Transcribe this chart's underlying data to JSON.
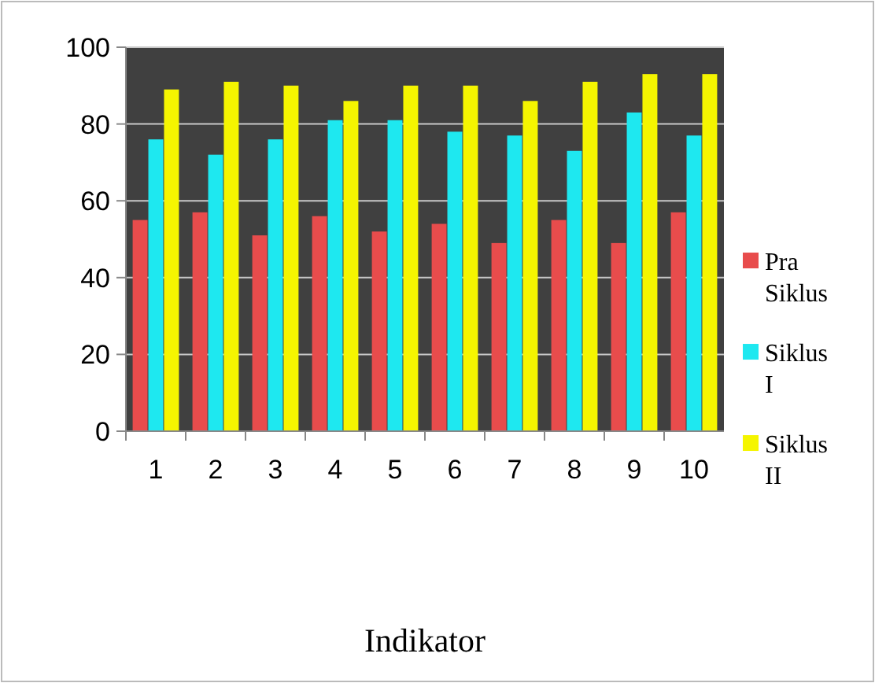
{
  "chart_data": {
    "type": "bar",
    "xlabel": "Indikator",
    "categories": [
      "1",
      "2",
      "3",
      "4",
      "5",
      "6",
      "7",
      "8",
      "9",
      "10"
    ],
    "series": [
      {
        "name": "Pra Siklus",
        "color": "#e84c4c",
        "values": [
          55,
          57,
          51,
          56,
          52,
          54,
          49,
          55,
          49,
          57
        ]
      },
      {
        "name": "Siklus I",
        "color": "#1ee8f0",
        "values": [
          76,
          72,
          76,
          81,
          81,
          78,
          77,
          73,
          83,
          77
        ]
      },
      {
        "name": "Siklus II",
        "color": "#f5f500",
        "values": [
          89,
          91,
          90,
          86,
          90,
          90,
          86,
          91,
          93,
          93
        ]
      }
    ],
    "ylim": [
      0,
      100
    ],
    "yticks": [
      0,
      20,
      40,
      60,
      80,
      100
    ],
    "grid": "y",
    "legend": "right"
  }
}
